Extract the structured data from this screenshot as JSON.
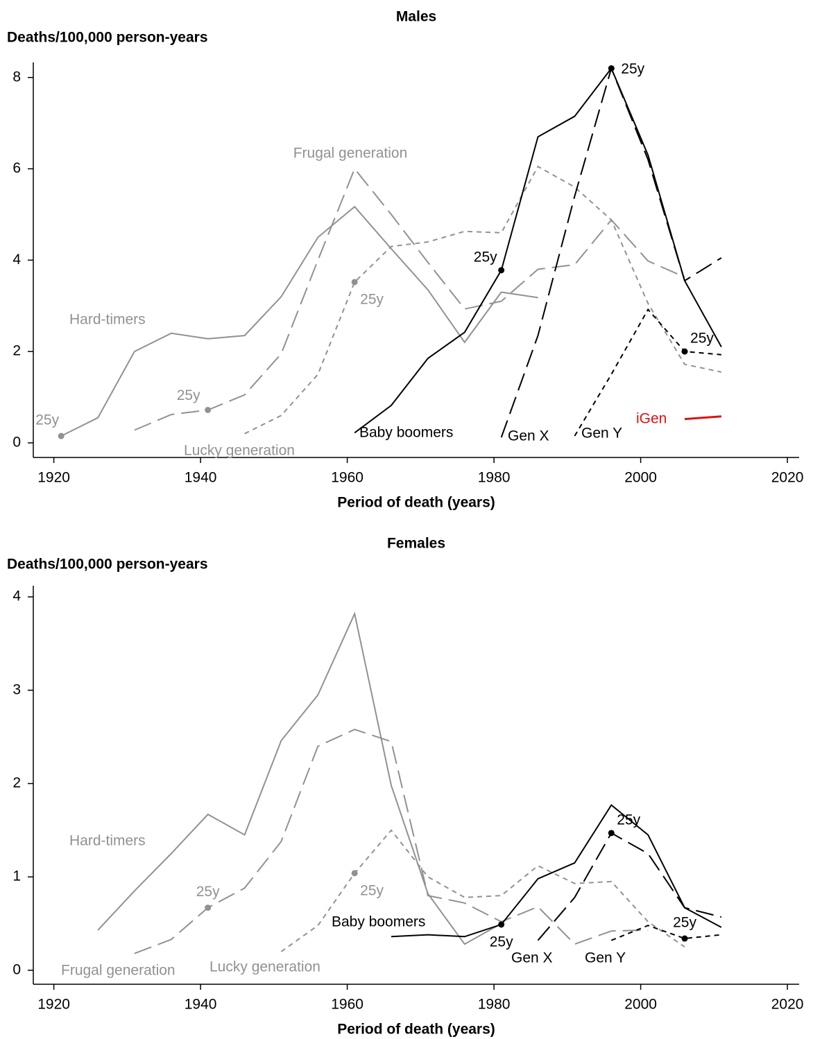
{
  "chart_data": [
    {
      "type": "line",
      "title": "Males",
      "ylabel": "Deaths/100,000 person-years",
      "xlabel": "Period of death (years)",
      "xlim": [
        1917.2,
        2021.6
      ],
      "ylim": [
        -0.32,
        8.33
      ],
      "xticks": [
        1920,
        1940,
        1960,
        1980,
        2000,
        2020
      ],
      "yticks": [
        0,
        2,
        4,
        6,
        8
      ],
      "x": [
        1921,
        1926,
        1931,
        1936,
        1941,
        1946,
        1951,
        1956,
        1961,
        1966,
        1971,
        1976,
        1981,
        1986,
        1991,
        1996,
        2001,
        2006,
        2011
      ],
      "series": [
        {
          "name": "Hard-timers",
          "color": "#919191",
          "dash": "solid",
          "values": [
            0.15,
            0.55,
            2.0,
            2.4,
            2.28,
            2.35,
            3.2,
            4.5,
            5.17,
            4.25,
            3.35,
            2.2,
            3.3,
            3.18,
            null,
            null,
            null,
            null,
            null
          ]
        },
        {
          "name": "Frugal generation",
          "color": "#919191",
          "dash": "long",
          "values": [
            null,
            null,
            0.28,
            0.62,
            0.72,
            1.05,
            1.95,
            4.0,
            6.0,
            5.0,
            3.95,
            2.93,
            3.1,
            3.8,
            3.9,
            4.88,
            3.98,
            3.63,
            null
          ]
        },
        {
          "name": "Lucky generation",
          "color": "#919191",
          "dash": "short",
          "values": [
            null,
            null,
            null,
            null,
            null,
            0.2,
            0.6,
            1.5,
            3.52,
            4.3,
            4.4,
            4.63,
            4.6,
            6.05,
            5.6,
            4.88,
            3.05,
            1.72,
            1.55
          ]
        },
        {
          "name": "Baby boomers",
          "color": "#000000",
          "dash": "solid",
          "values": [
            null,
            null,
            null,
            null,
            null,
            null,
            null,
            null,
            0.22,
            0.82,
            1.85,
            2.42,
            3.78,
            6.7,
            7.15,
            8.2,
            6.3,
            3.55,
            2.1
          ]
        },
        {
          "name": "Gen X",
          "color": "#000000",
          "dash": "long",
          "values": [
            null,
            null,
            null,
            null,
            null,
            null,
            null,
            null,
            null,
            null,
            null,
            null,
            0.12,
            2.35,
            5.4,
            8.2,
            6.2,
            3.55,
            4.05
          ]
        },
        {
          "name": "Gen Y",
          "color": "#000000",
          "dash": "short",
          "values": [
            null,
            null,
            null,
            null,
            null,
            null,
            null,
            null,
            null,
            null,
            null,
            null,
            null,
            null,
            0.15,
            1.5,
            2.92,
            2.0,
            1.93
          ]
        },
        {
          "name": "iGen",
          "color": "#e01010",
          "dash": "solid",
          "values": [
            null,
            null,
            null,
            null,
            null,
            null,
            null,
            null,
            null,
            null,
            null,
            null,
            null,
            null,
            null,
            null,
            null,
            0.52,
            0.58
          ]
        }
      ],
      "annotations": [
        {
          "text": "25y",
          "x": 1921,
          "y": 0.15,
          "color": "#919191"
        },
        {
          "text": "25y",
          "x": 1941,
          "y": 0.72,
          "color": "#919191"
        },
        {
          "text": "25y",
          "x": 1961,
          "y": 3.52,
          "color": "#919191"
        },
        {
          "text": "25y",
          "x": 1981,
          "y": 3.78,
          "color": "#000000"
        },
        {
          "text": "25y",
          "x": 1996,
          "y": 8.2,
          "color": "#000000"
        },
        {
          "text": "25y",
          "x": 2006,
          "y": 2.0,
          "color": "#000000"
        }
      ]
    },
    {
      "type": "line",
      "title": "Females",
      "ylabel": "Deaths/100,000 person-years",
      "xlabel": "Period of death (years)",
      "xlim": [
        1917.2,
        2021.6
      ],
      "ylim": [
        -0.15,
        4.12
      ],
      "xticks": [
        1920,
        1940,
        1960,
        1980,
        2000,
        2020
      ],
      "yticks": [
        0,
        1,
        2,
        3,
        4
      ],
      "x": [
        1921,
        1926,
        1931,
        1936,
        1941,
        1946,
        1951,
        1956,
        1961,
        1966,
        1971,
        1976,
        1981,
        1986,
        1991,
        1996,
        2001,
        2006,
        2011
      ],
      "series": [
        {
          "name": "Hard-timers",
          "color": "#919191",
          "dash": "solid",
          "values": [
            null,
            0.43,
            0.85,
            1.25,
            1.67,
            1.45,
            2.46,
            2.95,
            3.82,
            1.98,
            0.82,
            0.28,
            0.5,
            null,
            null,
            null,
            null,
            null,
            null
          ]
        },
        {
          "name": "Frugal generation",
          "color": "#919191",
          "dash": "long",
          "values": [
            null,
            null,
            0.18,
            0.33,
            0.67,
            0.88,
            1.38,
            2.4,
            2.58,
            2.45,
            0.8,
            0.72,
            0.52,
            0.68,
            0.28,
            0.42,
            0.43,
            null,
            null
          ]
        },
        {
          "name": "Lucky generation",
          "color": "#919191",
          "dash": "short",
          "values": [
            null,
            null,
            null,
            null,
            null,
            null,
            0.2,
            0.48,
            1.04,
            1.5,
            1.0,
            0.78,
            0.8,
            1.12,
            0.93,
            0.95,
            0.52,
            0.25,
            null
          ]
        },
        {
          "name": "Baby boomers",
          "color": "#000000",
          "dash": "solid",
          "values": [
            null,
            null,
            null,
            null,
            null,
            null,
            null,
            null,
            null,
            0.36,
            0.38,
            0.36,
            0.49,
            0.98,
            1.15,
            1.77,
            1.45,
            0.67,
            0.46
          ]
        },
        {
          "name": "Gen X",
          "color": "#000000",
          "dash": "long",
          "values": [
            null,
            null,
            null,
            null,
            null,
            null,
            null,
            null,
            null,
            null,
            null,
            null,
            null,
            0.32,
            0.78,
            1.47,
            1.25,
            0.67,
            0.57
          ]
        },
        {
          "name": "Gen Y",
          "color": "#000000",
          "dash": "short",
          "values": [
            null,
            null,
            null,
            null,
            null,
            null,
            null,
            null,
            null,
            null,
            null,
            null,
            null,
            null,
            null,
            0.32,
            0.48,
            0.34,
            0.38
          ]
        }
      ],
      "annotations": [
        {
          "text": "25y",
          "x": 1941,
          "y": 0.67,
          "color": "#919191"
        },
        {
          "text": "25y",
          "x": 1961,
          "y": 1.04,
          "color": "#919191"
        },
        {
          "text": "25y",
          "x": 1981,
          "y": 0.49,
          "color": "#000000"
        },
        {
          "text": "25y",
          "x": 1996,
          "y": 1.47,
          "color": "#000000"
        },
        {
          "text": "25y",
          "x": 2006,
          "y": 0.34,
          "color": "#000000"
        }
      ]
    }
  ]
}
